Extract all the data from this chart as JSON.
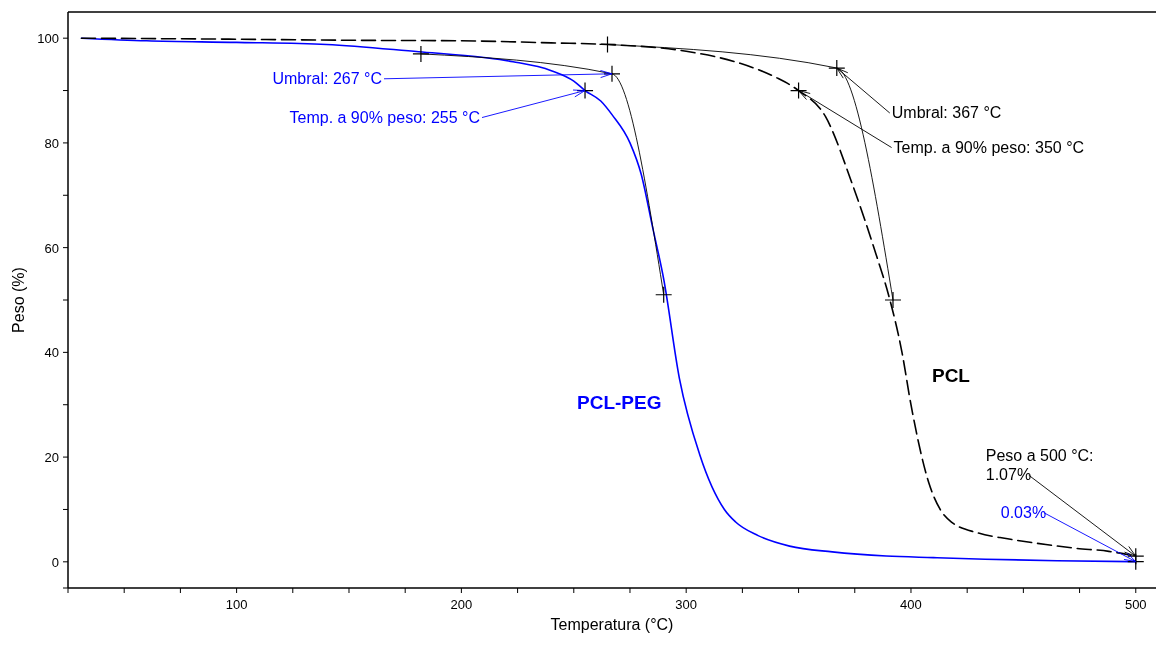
{
  "chart_data": {
    "type": "line",
    "xlabel": "Temperatura (°C)",
    "ylabel": "Peso (%)",
    "xlim": [
      25,
      509
    ],
    "ylim": [
      -5,
      105
    ],
    "xticks": [
      {
        "value": 25,
        "label": null
      },
      {
        "value": 50,
        "label": null
      },
      {
        "value": 75,
        "label": null
      },
      100,
      {
        "value": 125,
        "label": null
      },
      {
        "value": 150,
        "label": null
      },
      {
        "value": 175,
        "label": null
      },
      200,
      {
        "value": 225,
        "label": null
      },
      {
        "value": 250,
        "label": null
      },
      {
        "value": 275,
        "label": null
      },
      300,
      {
        "value": 325,
        "label": null
      },
      {
        "value": 350,
        "label": null
      },
      {
        "value": 375,
        "label": null
      },
      400,
      {
        "value": 425,
        "label": null
      },
      {
        "value": 450,
        "label": null
      },
      {
        "value": 475,
        "label": null
      },
      500
    ],
    "yticks": [
      {
        "value": -5,
        "label": null
      },
      0,
      {
        "value": 10,
        "label": null
      },
      20,
      {
        "value": 30,
        "label": null
      },
      40,
      {
        "value": 50,
        "label": null
      },
      60,
      {
        "value": 70,
        "label": null
      },
      80,
      {
        "value": 90,
        "label": null
      },
      100
    ],
    "grid": false,
    "series": [
      {
        "name": "PCL-PEG",
        "color": "#0000ff",
        "line_style": "solid",
        "marker": "none",
        "x": [
          31,
          60,
          100,
          140,
          181,
          210,
          223,
          240,
          250,
          255,
          262,
          267,
          275,
          280,
          285,
          290,
          297,
          306,
          317,
          322,
          332,
          346,
          365,
          389,
          410,
          433,
          465,
          500
        ],
        "values": [
          100,
          99.5,
          99.2,
          98.8,
          97.4,
          96.3,
          95.5,
          93.8,
          91.8,
          90,
          88,
          85.4,
          80,
          74,
          64,
          54,
          35,
          20.5,
          10,
          7.6,
          5,
          3,
          1.9,
          1.1,
          0.8,
          0.5,
          0.2,
          0.03
        ]
      },
      {
        "name": "PCL",
        "color": "#000000",
        "line_style": "dashed",
        "marker": "none",
        "x": [
          31,
          100,
          150,
          200,
          240,
          265,
          300,
          324,
          340,
          350,
          362,
          374,
          385,
          390,
          396,
          400,
          408,
          413,
          418,
          430,
          443,
          460,
          473,
          488,
          500
        ],
        "values": [
          100,
          99.8,
          99.6,
          99.5,
          99.1,
          98.8,
          97.5,
          95.2,
          92.5,
          90,
          85,
          72,
          58,
          51,
          40,
          30,
          15,
          10,
          7.6,
          5.5,
          4.4,
          3.3,
          2.6,
          2,
          1.07
        ]
      },
      {
        "type": "line",
        "color": "#000000",
        "line_style": "solid",
        "marker": "cross",
        "x": [
          182,
          267,
          290
        ],
        "values": [
          97,
          93.2,
          51
        ]
      },
      {
        "type": "line",
        "color": "#000000",
        "line_style": "solid",
        "marker": "cross",
        "x": [
          265,
          367,
          392
        ],
        "values": [
          98.8,
          94.3,
          50
        ]
      },
      {
        "type": "scatter",
        "color": "#000000",
        "marker": "cross",
        "x": [
          255,
          350,
          500,
          500
        ],
        "values": [
          90,
          90,
          0.03,
          1.07
        ]
      }
    ],
    "annotations": [
      {
        "text": "Umbral: 267 °C",
        "x": 267,
        "y": 93.2
      },
      {
        "text": "Temp. a 90% peso: 255 °C",
        "x": 255,
        "y": 90
      },
      {
        "text": "Umbral: 367 °C",
        "x": 367,
        "y": 94.3
      },
      {
        "text": "Temp. a 90% peso: 350 °C",
        "x": 350,
        "y": 90
      },
      {
        "text": "Peso a 500 °C:\n1.07%",
        "x": 500,
        "y": 1.07
      },
      {
        "text": "0.03%",
        "x": 500,
        "y": 0.03
      }
    ]
  }
}
